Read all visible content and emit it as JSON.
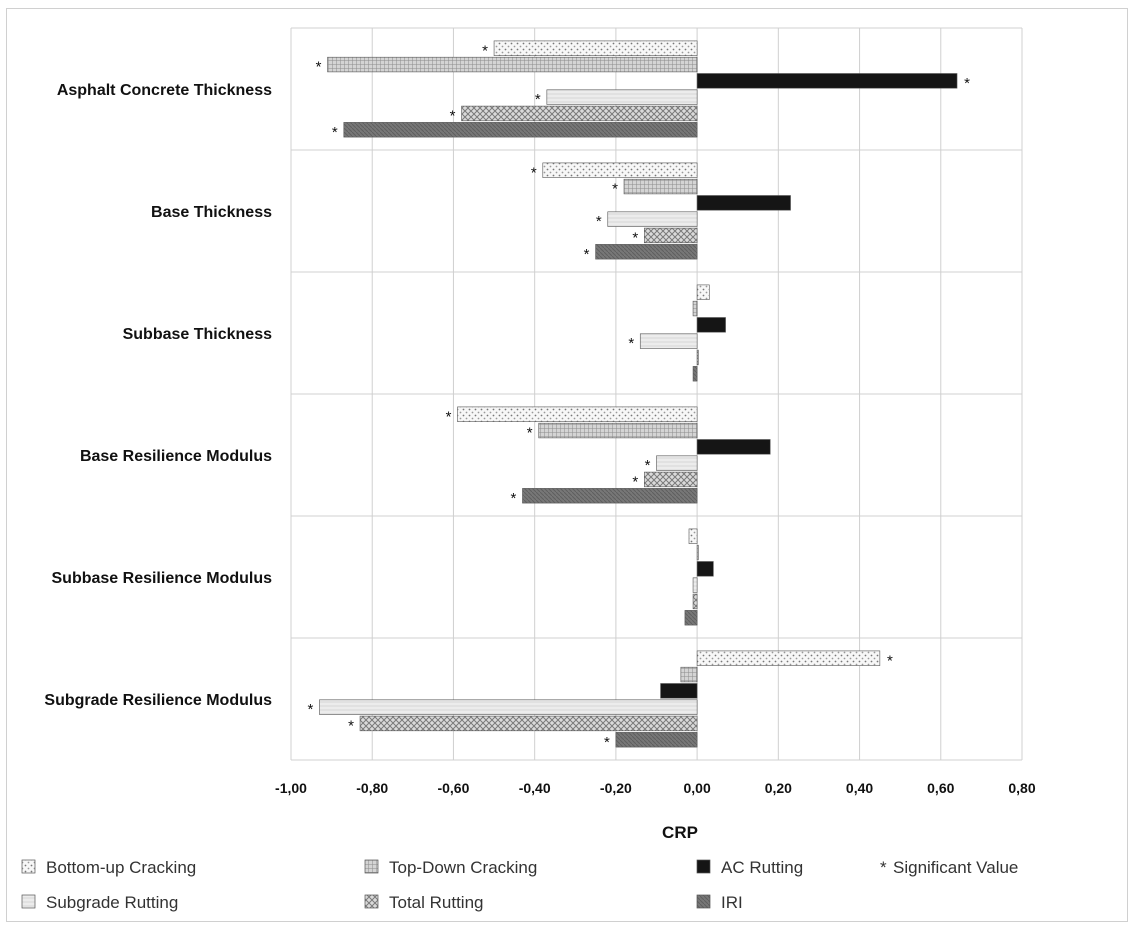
{
  "chart_data": {
    "type": "bar",
    "orientation": "horizontal",
    "xlabel": "CRP",
    "xlim": [
      -1.0,
      0.8
    ],
    "xticks": [
      "-1,00",
      "-0,80",
      "-0,60",
      "-0,40",
      "-0,20",
      "0,00",
      "0,20",
      "0,40",
      "0,60",
      "0,80"
    ],
    "grid": true,
    "legend_position": "bottom",
    "categories": [
      "Asphalt Concrete Thickness",
      "Base Thickness",
      "Subbase Thickness",
      "Base Resilience Modulus",
      "Subbase Resilience Modulus",
      "Subgrade Resilience Modulus"
    ],
    "series": [
      {
        "name": "Bottom-up Cracking",
        "pattern": "dots-light",
        "color": "#f4f4f4",
        "values": [
          -0.5,
          -0.38,
          0.03,
          -0.59,
          -0.02,
          0.45
        ],
        "significant": [
          true,
          true,
          false,
          true,
          false,
          true
        ]
      },
      {
        "name": "Top-Down Cracking",
        "pattern": "grid-gray",
        "color": "#c8c8c8",
        "values": [
          -0.91,
          -0.18,
          -0.01,
          -0.39,
          0.0,
          -0.04
        ],
        "significant": [
          true,
          true,
          false,
          true,
          false,
          false
        ]
      },
      {
        "name": "AC Rutting",
        "pattern": "solid-black",
        "color": "#111111",
        "values": [
          0.64,
          0.23,
          0.07,
          0.18,
          0.04,
          -0.09
        ],
        "significant": [
          true,
          false,
          false,
          false,
          false,
          false
        ]
      },
      {
        "name": "Subgrade Rutting",
        "pattern": "light-gray",
        "color": "#e6e6e6",
        "values": [
          -0.37,
          -0.22,
          -0.14,
          -0.1,
          -0.01,
          -0.93
        ],
        "significant": [
          true,
          true,
          true,
          true,
          false,
          true
        ]
      },
      {
        "name": "Total Rutting",
        "pattern": "crosshatch",
        "color": "#bdbdbd",
        "values": [
          -0.58,
          -0.13,
          0.0,
          -0.13,
          -0.01,
          -0.83
        ],
        "significant": [
          true,
          true,
          false,
          true,
          false,
          true
        ]
      },
      {
        "name": "IRI",
        "pattern": "dark-gray",
        "color": "#7a7a7a",
        "values": [
          -0.87,
          -0.25,
          -0.01,
          -0.43,
          -0.03,
          -0.2
        ],
        "significant": [
          true,
          true,
          false,
          true,
          false,
          true
        ]
      }
    ],
    "significance_marker": "*",
    "significance_label": "Significant Value"
  }
}
